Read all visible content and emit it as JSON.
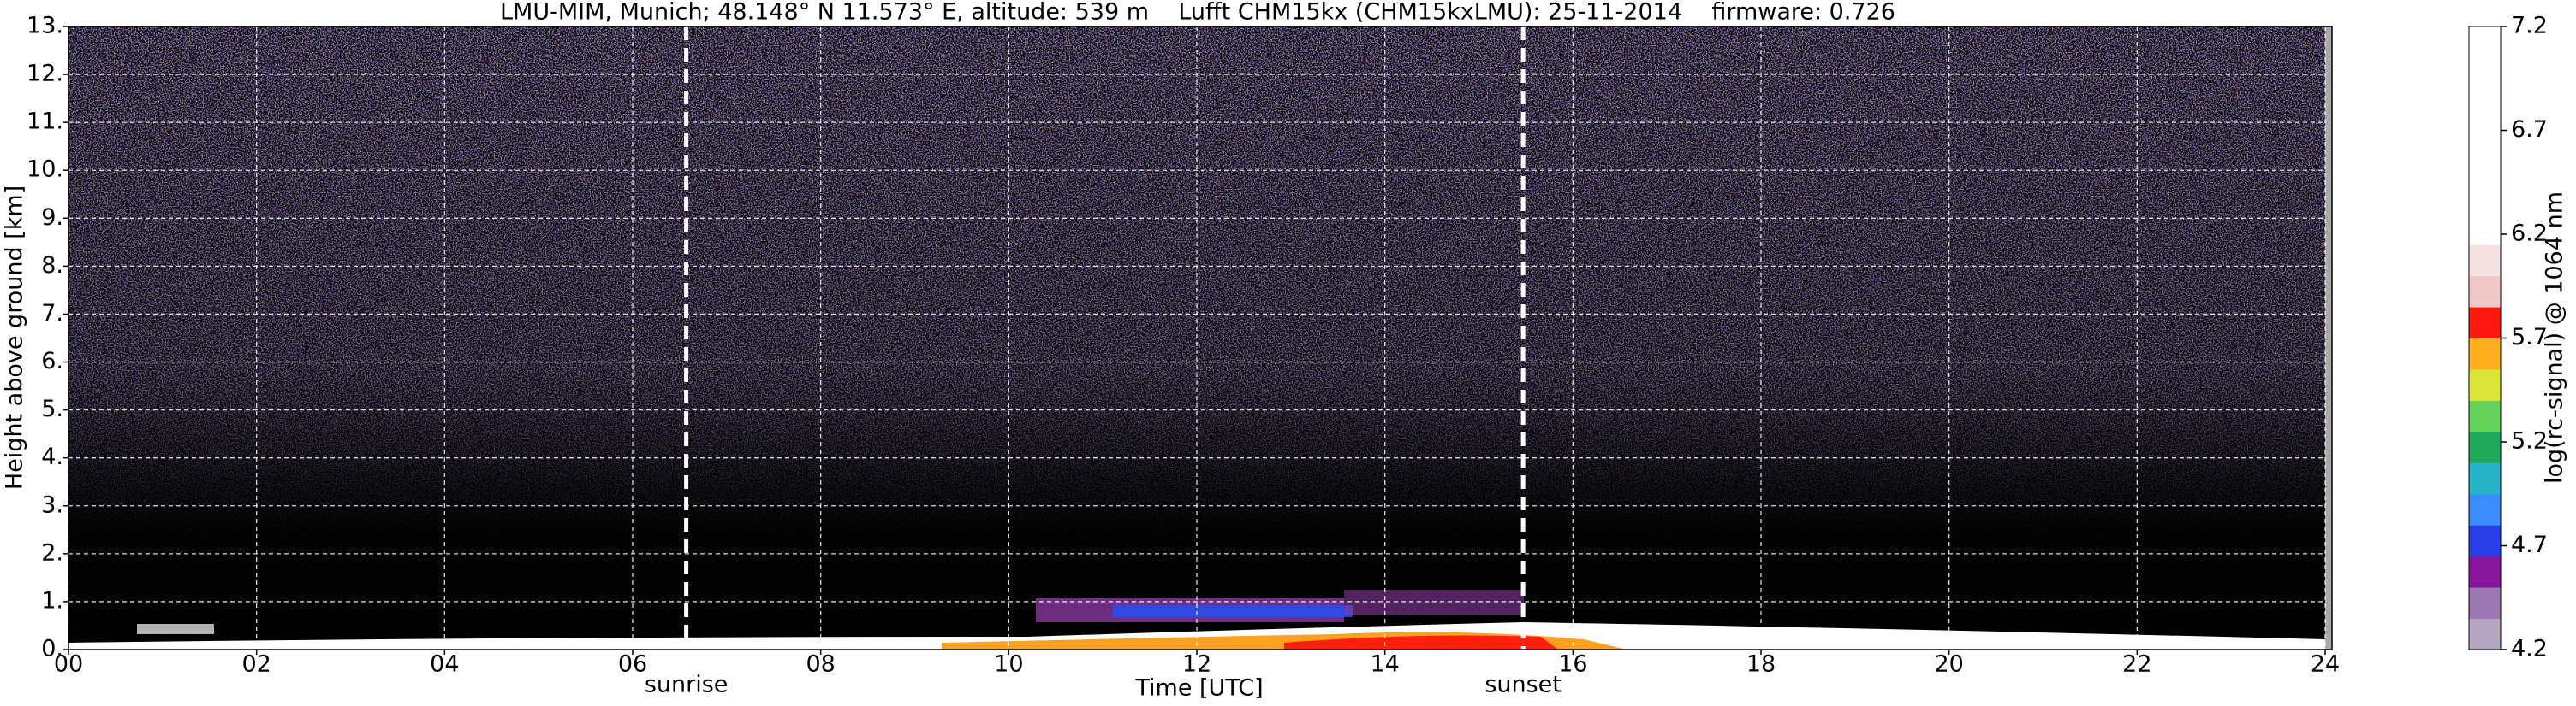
{
  "chart_data": {
    "type": "heatmap",
    "title": "LMU-MIM, Munich; 48.148° N 11.573° E, altitude: 539 m    Lufft CHM15kx (CHM15kxLMU): 25-11-2014    firmware: 0.726",
    "xlabel": "Time [UTC]",
    "ylabel": "Height above ground [km]",
    "xlim": [
      0,
      24
    ],
    "xticks": [
      {
        "value": 0,
        "label": "00"
      },
      {
        "value": 2,
        "label": "02"
      },
      {
        "value": 4,
        "label": "04"
      },
      {
        "value": 6,
        "label": "06"
      },
      {
        "value": 8,
        "label": "08"
      },
      10,
      12,
      14,
      16,
      18,
      20,
      22,
      24
    ],
    "ylim": [
      0,
      13
    ],
    "yticks": [
      {
        "value": 0,
        "label": "0."
      },
      {
        "value": 1,
        "label": "1."
      },
      {
        "value": 2,
        "label": "2."
      },
      {
        "value": 3,
        "label": "3."
      },
      {
        "value": 4,
        "label": "4."
      },
      {
        "value": 5,
        "label": "5."
      },
      {
        "value": 6,
        "label": "6."
      },
      {
        "value": 7,
        "label": "7."
      },
      {
        "value": 8,
        "label": "8."
      },
      {
        "value": 9,
        "label": "9."
      },
      {
        "value": 10,
        "label": "10."
      },
      {
        "value": 11,
        "label": "11."
      },
      {
        "value": 12,
        "label": "12."
      },
      {
        "value": 13,
        "label": "13."
      }
    ],
    "grid": true,
    "annotations": [
      {
        "text": "sunrise",
        "x": 6.57
      },
      {
        "text": "sunset",
        "x": 15.47
      }
    ],
    "colorbar": {
      "label": "log(rc-signal) @ 1064 nm",
      "lim": [
        4.2,
        7.2
      ],
      "ticks": [
        4.2,
        4.7,
        5.2,
        5.7,
        6.2,
        6.7,
        7.2
      ],
      "colors": [
        "#b4a6c0",
        "#9c78b2",
        "#86169c",
        "#2a3ee6",
        "#3c8cff",
        "#28b4c8",
        "#1fa85a",
        "#62d25a",
        "#dce63a",
        "#ffb020",
        "#ff1a10",
        "#f0c8c8",
        "#f6e2e2",
        "#ffffff",
        "#ffffff",
        "#ffffff",
        "#ffffff",
        "#ffffff",
        "#ffffff",
        "#ffffff"
      ]
    }
  }
}
